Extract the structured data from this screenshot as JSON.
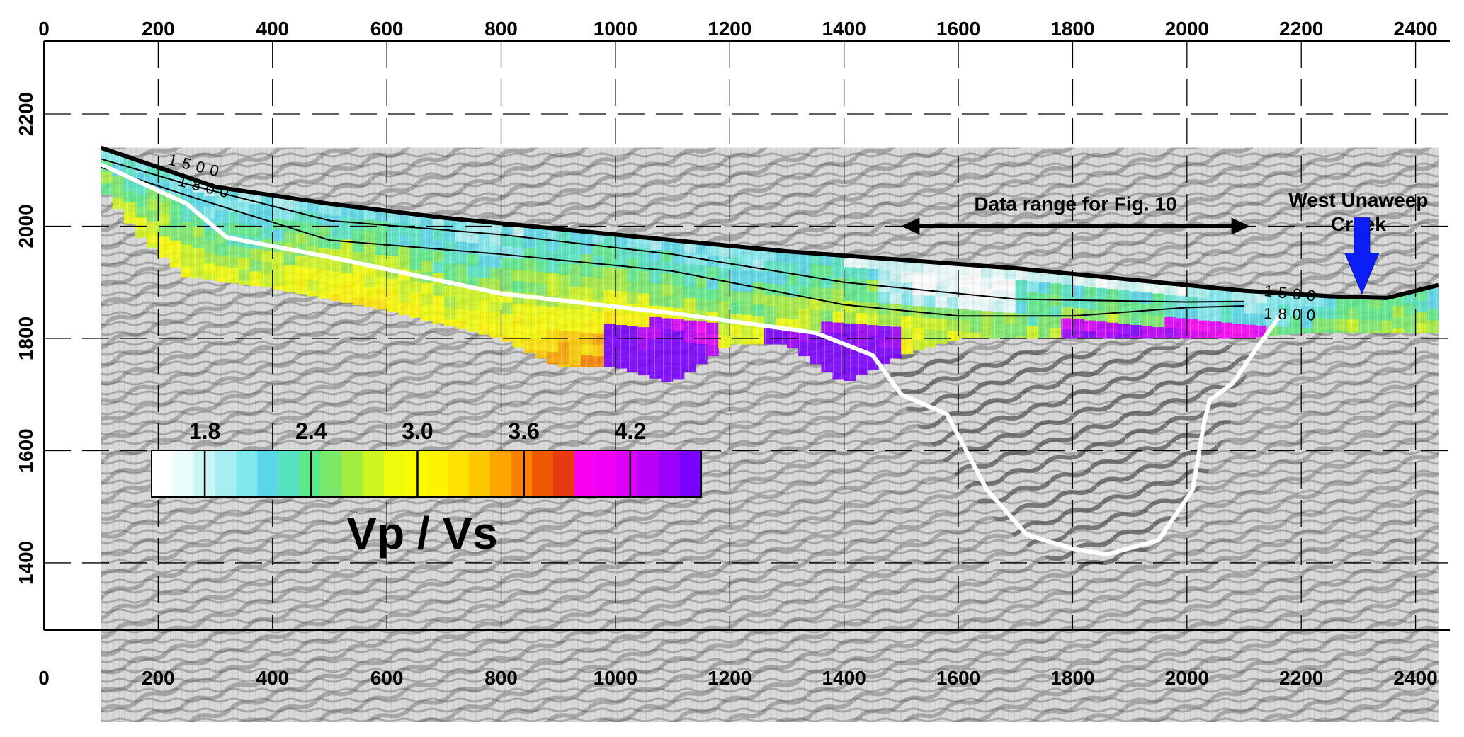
{
  "chart_data": {
    "type": "heatmap",
    "title": "",
    "xlabel": "",
    "ylabel": "",
    "xlim": [
      0,
      2460
    ],
    "ylim": [
      1280,
      2330
    ],
    "x_ticks": [
      "0",
      "200",
      "400",
      "600",
      "800",
      "1000",
      "1200",
      "1400",
      "1600",
      "1800",
      "2000",
      "2200",
      "2400"
    ],
    "x_tick_values": [
      0,
      200,
      400,
      600,
      800,
      1000,
      1200,
      1400,
      1600,
      1800,
      2000,
      2200,
      2400
    ],
    "y_ticks": [
      "1400",
      "1600",
      "1800",
      "2000",
      "2200"
    ],
    "y_tick_values": [
      1400,
      1600,
      1800,
      2000,
      2200
    ],
    "grid": true,
    "colorbar": {
      "title": "Vp / Vs",
      "tick_labels": [
        "1.8",
        "2.4",
        "3.0",
        "3.6",
        "4.2"
      ],
      "tick_values": [
        1.8,
        2.4,
        3.0,
        3.6,
        4.2
      ],
      "range": [
        1.5,
        4.6
      ],
      "colors": [
        "#ffffff",
        "#eafbfb",
        "#c8f4f4",
        "#a6eef0",
        "#7fe8ec",
        "#5ad6e6",
        "#57e3c2",
        "#5de88a",
        "#7be86a",
        "#a4ec40",
        "#cdf520",
        "#eefc0a",
        "#f8fc00",
        "#fcf400",
        "#fde200",
        "#fdc800",
        "#fca600",
        "#f88200",
        "#ef5a00",
        "#e83a10",
        "#fa00f0",
        "#f100f6",
        "#dc00f8",
        "#bb00fa",
        "#9b00fc",
        "#7a00fe"
      ]
    },
    "series": [
      {
        "type": "line",
        "color": "#000000",
        "x": [
          100,
          300,
          500,
          700,
          900,
          1100,
          1300,
          1500,
          1700,
          1900,
          2100,
          2250,
          2350,
          2440
        ],
        "y": [
          2140,
          2070,
          2040,
          2015,
          1995,
          1975,
          1955,
          1940,
          1925,
          1905,
          1885,
          1875,
          1872,
          1895
        ]
      },
      {
        "type": "contour",
        "label": "1500",
        "color": "#000000",
        "x": [
          100,
          250,
          500,
          800,
          1100,
          1400,
          1700,
          2000,
          2100
        ],
        "y": [
          2120,
          2075,
          2010,
          1985,
          1950,
          1900,
          1870,
          1865,
          1866
        ]
      },
      {
        "type": "contour",
        "label": "1800",
        "color": "#000000",
        "x": [
          100,
          250,
          500,
          800,
          1100,
          1400,
          1600,
          1800,
          2000,
          2100
        ],
        "y": [
          2105,
          2055,
          1975,
          1950,
          1920,
          1860,
          1840,
          1840,
          1855,
          1858
        ]
      },
      {
        "type": "line",
        "color": "#ffffff",
        "x": [
          100,
          250,
          320,
          500,
          800,
          1100,
          1350,
          1450,
          1500,
          1580,
          1650,
          1720,
          1800,
          1860,
          1950,
          2010,
          2030,
          2040,
          2080,
          2120,
          2170
        ],
        "y": [
          2110,
          2040,
          1980,
          1945,
          1880,
          1845,
          1810,
          1770,
          1700,
          1665,
          1530,
          1450,
          1425,
          1415,
          1440,
          1530,
          1650,
          1690,
          1720,
          1780,
          1850
        ]
      }
    ],
    "annotations": [
      {
        "text": "Data range for Fig. 10",
        "x_start": 1500,
        "x_end": 2110,
        "y": 2000
      },
      {
        "text": "West Unaweep",
        "x": 2300,
        "y": 2080
      },
      {
        "text": "Creek",
        "x": 2300,
        "y": 2040
      }
    ]
  }
}
